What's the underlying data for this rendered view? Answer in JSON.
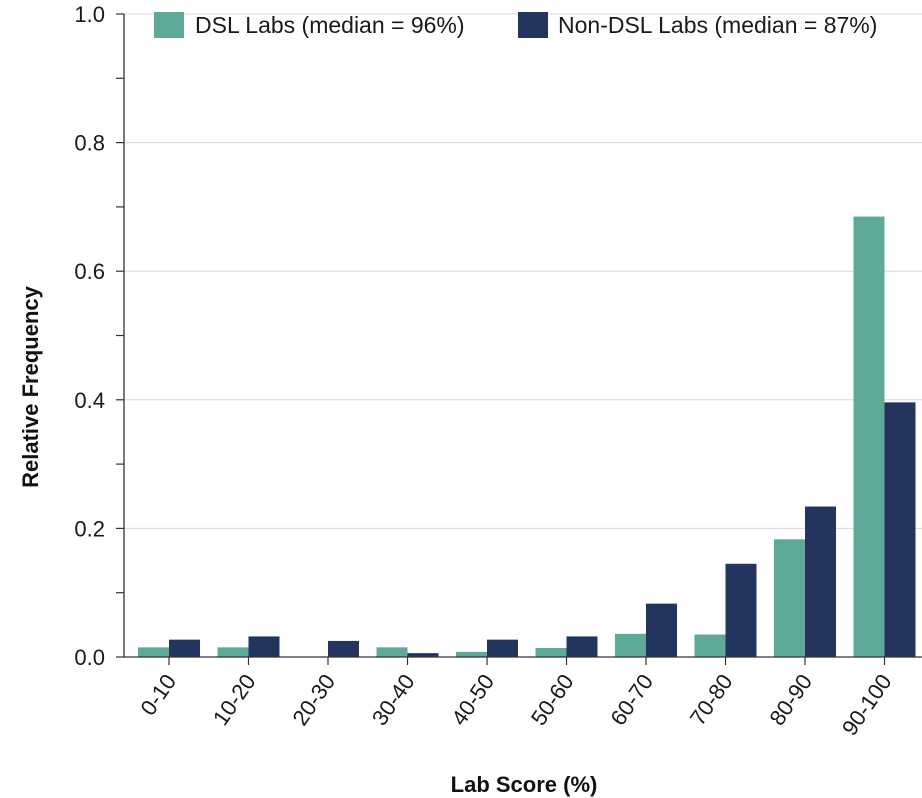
{
  "chart_data": {
    "type": "bar",
    "title": "",
    "xlabel": "Lab Score (%)",
    "ylabel": "Relative Frequency",
    "categories": [
      "0-10",
      "10-20",
      "20-30",
      "30-40",
      "40-50",
      "50-60",
      "60-70",
      "70-80",
      "80-90",
      "90-100"
    ],
    "series": [
      {
        "name": "DSL Labs (median = 96%)",
        "color": "#5fa998",
        "values": [
          0.015,
          0.015,
          0.0,
          0.015,
          0.008,
          0.014,
          0.036,
          0.035,
          0.183,
          0.685
        ]
      },
      {
        "name": "Non-DSL Labs (median = 87%)",
        "color": "#23355e",
        "values": [
          0.027,
          0.032,
          0.025,
          0.006,
          0.027,
          0.032,
          0.083,
          0.145,
          0.234,
          0.396
        ]
      }
    ],
    "ylim": [
      0,
      1.0
    ],
    "y_ticks": [
      "0.0",
      "0.2",
      "0.4",
      "0.6",
      "0.8",
      "1.0"
    ],
    "grid": true,
    "legend_position": "top-right"
  }
}
